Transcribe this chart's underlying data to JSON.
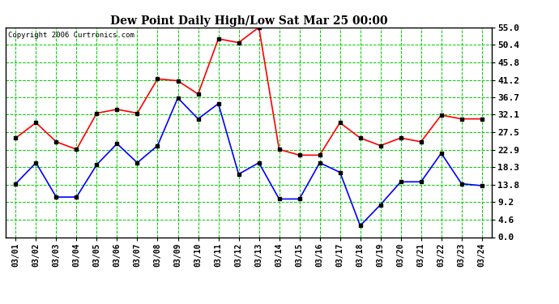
{
  "title": "Dew Point Daily High/Low Sat Mar 25 00:00",
  "copyright": "Copyright 2006 Curtronics.com",
  "dates": [
    "03/01",
    "03/02",
    "03/03",
    "03/04",
    "03/05",
    "03/06",
    "03/07",
    "03/08",
    "03/09",
    "03/10",
    "03/11",
    "03/12",
    "03/13",
    "03/14",
    "03/15",
    "03/16",
    "03/17",
    "03/18",
    "03/19",
    "03/20",
    "03/21",
    "03/22",
    "03/23",
    "03/24"
  ],
  "high": [
    26.0,
    30.0,
    25.0,
    23.0,
    32.5,
    33.5,
    32.5,
    41.5,
    41.0,
    37.5,
    52.0,
    51.0,
    55.0,
    23.0,
    21.5,
    21.5,
    30.0,
    26.0,
    24.0,
    26.0,
    25.0,
    32.0,
    31.0,
    31.0
  ],
  "low": [
    14.0,
    19.5,
    10.5,
    10.5,
    19.0,
    24.5,
    19.5,
    24.0,
    36.5,
    31.0,
    35.0,
    16.5,
    19.5,
    10.0,
    10.0,
    19.5,
    17.0,
    3.0,
    8.5,
    14.5,
    14.5,
    22.0,
    14.0,
    13.5
  ],
  "high_color": "#ff0000",
  "low_color": "#0000ff",
  "bg_color": "#ffffff",
  "plot_bg_color": "#ffffff",
  "grid_color": "#00cc00",
  "ylim": [
    0.0,
    55.0
  ],
  "yticks": [
    0.0,
    4.6,
    9.2,
    13.8,
    18.3,
    22.9,
    27.5,
    32.1,
    36.7,
    41.2,
    45.8,
    50.4,
    55.0
  ],
  "marker": "s",
  "markersize": 3,
  "linewidth": 1.2
}
